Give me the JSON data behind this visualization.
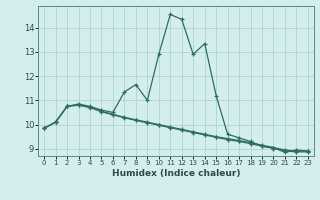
{
  "xlabel": "Humidex (Indice chaleur)",
  "bg_color": "#d4eeee",
  "line_color": "#2d6e63",
  "grid_color": "#aacece",
  "xlim": [
    -0.5,
    23.5
  ],
  "ylim": [
    8.7,
    14.9
  ],
  "xticks": [
    0,
    1,
    2,
    3,
    4,
    5,
    6,
    7,
    8,
    9,
    10,
    11,
    12,
    13,
    14,
    15,
    16,
    17,
    18,
    19,
    20,
    21,
    22,
    23
  ],
  "yticks": [
    9,
    10,
    11,
    12,
    13,
    14
  ],
  "curve1_x": [
    0,
    1,
    2,
    3,
    4,
    5,
    6,
    7,
    8,
    9,
    10,
    11,
    12,
    13,
    14,
    15,
    16,
    17,
    18,
    19,
    20,
    21,
    22,
    23
  ],
  "curve1_y": [
    9.85,
    10.1,
    10.75,
    10.85,
    10.75,
    10.6,
    10.5,
    11.35,
    11.65,
    11.0,
    12.9,
    14.55,
    14.35,
    12.9,
    13.35,
    11.2,
    9.6,
    9.45,
    9.3,
    9.1,
    9.05,
    8.85,
    8.95,
    8.9
  ],
  "curve2_x": [
    0,
    1,
    2,
    3,
    4,
    5,
    6,
    7,
    8,
    9,
    10,
    11,
    12,
    13,
    14,
    15,
    16,
    17,
    18,
    19,
    20,
    21,
    22,
    23
  ],
  "curve2_y": [
    9.85,
    10.1,
    10.75,
    10.82,
    10.72,
    10.55,
    10.42,
    10.3,
    10.2,
    10.1,
    10.0,
    9.9,
    9.8,
    9.7,
    9.6,
    9.5,
    9.42,
    9.34,
    9.25,
    9.15,
    9.05,
    8.95,
    8.9,
    8.9
  ],
  "curve3_x": [
    0,
    1,
    2,
    3,
    4,
    5,
    6,
    7,
    8,
    9,
    10,
    11,
    12,
    13,
    14,
    15,
    16,
    17,
    18,
    19,
    20,
    21,
    22,
    23
  ],
  "curve3_y": [
    9.85,
    10.1,
    10.75,
    10.8,
    10.7,
    10.53,
    10.4,
    10.28,
    10.17,
    10.07,
    9.97,
    9.87,
    9.77,
    9.67,
    9.57,
    9.47,
    9.38,
    9.3,
    9.21,
    9.11,
    9.01,
    8.91,
    8.87,
    8.87
  ]
}
